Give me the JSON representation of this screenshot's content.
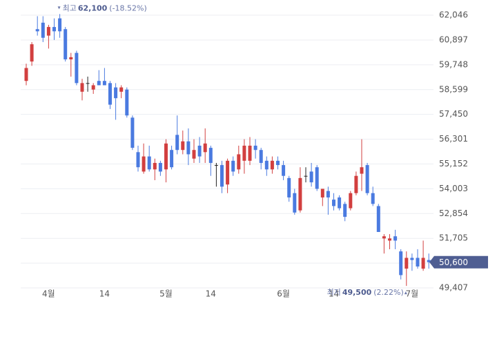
{
  "chart_data": {
    "type": "candlestick",
    "categories": [
      null,
      null,
      null,
      null,
      "4월",
      null,
      null,
      null,
      null,
      null,
      null,
      null,
      null,
      null,
      "14",
      null,
      null,
      null,
      null,
      null,
      null,
      null,
      null,
      null,
      null,
      "5월",
      null,
      null,
      null,
      null,
      null,
      null,
      null,
      "14",
      null,
      null,
      null,
      null,
      null,
      null,
      null,
      null,
      null,
      null,
      null,
      null,
      "6월",
      null,
      null,
      null,
      null,
      null,
      null,
      null,
      null,
      "14",
      null,
      null,
      null,
      null,
      null,
      null,
      null,
      null,
      null,
      null,
      null,
      null,
      null,
      "7월",
      null,
      null,
      null
    ],
    "open": [
      59000,
      59900,
      61400,
      61700,
      61100,
      61500,
      61900,
      61400,
      60000,
      60300,
      58500,
      58900,
      58600,
      59000,
      59000,
      58900,
      58700,
      58500,
      58600,
      57300,
      55700,
      54800,
      55500,
      54900,
      55200,
      54900,
      55800,
      56500,
      55800,
      56200,
      55400,
      56000,
      55700,
      55900,
      55100,
      55100,
      54200,
      55300,
      54900,
      55300,
      55300,
      56000,
      55800,
      55300,
      54900,
      55300,
      55100,
      54500,
      53800,
      53000,
      54600,
      54800,
      55000,
      53600,
      53900,
      53500,
      53600,
      53300,
      53100,
      53800,
      54700,
      55100,
      53800,
      53200,
      51700,
      51600,
      51800,
      51100,
      50300,
      50800,
      50800,
      50300,
      50700
    ],
    "high": [
      59800,
      60800,
      62000,
      62000,
      61600,
      61900,
      62100,
      61500,
      60300,
      60400,
      59100,
      59200,
      58900,
      59500,
      59600,
      59000,
      58900,
      58800,
      58700,
      57400,
      56000,
      56100,
      56000,
      55400,
      55300,
      56300,
      56000,
      57400,
      56700,
      56800,
      56300,
      56400,
      56800,
      56000,
      55200,
      55300,
      55400,
      55500,
      56000,
      56300,
      56400,
      56300,
      55900,
      55500,
      55500,
      55500,
      55300,
      54600,
      54000,
      55000,
      55000,
      55200,
      55100,
      54000,
      54100,
      53800,
      53700,
      53400,
      53900,
      54800,
      56300,
      55200,
      54100,
      53300,
      51900,
      51900,
      52100,
      51200,
      51100,
      51000,
      51200,
      51600,
      51000
    ],
    "low": [
      58800,
      59700,
      61100,
      60800,
      60500,
      60900,
      61000,
      59900,
      59200,
      58800,
      58100,
      58500,
      58400,
      58800,
      58800,
      57700,
      57200,
      58200,
      57300,
      55800,
      54800,
      54700,
      54800,
      54400,
      54600,
      54300,
      54900,
      55600,
      55600,
      55100,
      55200,
      55200,
      55200,
      54600,
      54100,
      53800,
      53800,
      54600,
      54700,
      54700,
      55100,
      55400,
      54900,
      54600,
      54700,
      54900,
      54400,
      53400,
      52800,
      52900,
      54300,
      54100,
      53900,
      53200,
      52800,
      53000,
      53000,
      52500,
      53000,
      53700,
      53900,
      53700,
      53200,
      52000,
      51000,
      51200,
      51200,
      49800,
      49500,
      50200,
      50300,
      50200,
      50300
    ],
    "close": [
      59600,
      60700,
      61300,
      61000,
      61500,
      61300,
      61300,
      60000,
      60100,
      58900,
      58900,
      58900,
      58800,
      58800,
      58800,
      57900,
      58200,
      58700,
      57400,
      55900,
      55000,
      55500,
      54900,
      55200,
      54800,
      56100,
      55000,
      55800,
      56200,
      55600,
      55800,
      55500,
      56100,
      55200,
      55100,
      54100,
      55300,
      54800,
      55600,
      56000,
      56000,
      55800,
      55200,
      54900,
      55300,
      55100,
      54600,
      53600,
      52900,
      54500,
      54600,
      54300,
      54000,
      54000,
      53600,
      53200,
      53100,
      52700,
      53800,
      54600,
      55000,
      53800,
      53300,
      52000,
      51800,
      51700,
      51600,
      50000,
      50800,
      50700,
      50400,
      50800,
      50600
    ],
    "up_color": "#d23f3f",
    "down_color": "#4a7ae0",
    "flat_color": "#222222",
    "ylim": [
      48671,
      62431
    ],
    "yticks": [
      {
        "value": 49407,
        "label": "49,407"
      },
      {
        "value": 50556,
        "label": "50,556"
      },
      {
        "value": 51705,
        "label": "51,705"
      },
      {
        "value": 52854,
        "label": "52,854"
      },
      {
        "value": 54003,
        "label": "54,003"
      },
      {
        "value": 55152,
        "label": "55,152"
      },
      {
        "value": 56301,
        "label": "56,301"
      },
      {
        "value": 57450,
        "label": "57,450"
      },
      {
        "value": 58599,
        "label": "58,599"
      },
      {
        "value": 59748,
        "label": "59,748"
      },
      {
        "value": 60897,
        "label": "60,897"
      },
      {
        "value": 62046,
        "label": "62,046"
      }
    ],
    "grid": true,
    "high_annotation": {
      "label": "최고",
      "value": 62100,
      "value_label": "62,100",
      "change": "(-18.52%)"
    },
    "low_annotation": {
      "label": "최저",
      "value": 49500,
      "value_label": "49,500",
      "change": "(2.22%)"
    },
    "last_price": {
      "value": 50600,
      "label": "50,600"
    }
  }
}
